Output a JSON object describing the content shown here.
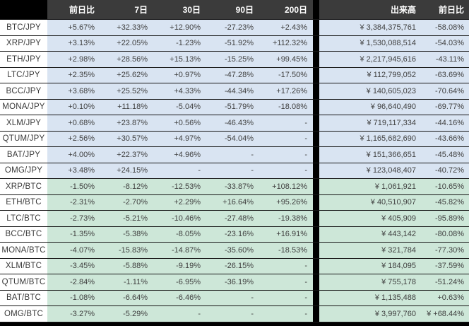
{
  "table": {
    "headers": [
      "前日比",
      "7日",
      "30日",
      "90日",
      "200日",
      "出来高",
      "前日比"
    ],
    "sections": [
      {
        "name": "jpy-pairs",
        "rows": [
          {
            "pair": "BTC/JPY",
            "changes": [
              "+5.67%",
              "+32.33%",
              "+12.90%",
              "-27.23%",
              "+2.43%"
            ],
            "volume": "¥ 3,384,375,761",
            "volume_change": "-58.08%"
          },
          {
            "pair": "XRP/JPY",
            "changes": [
              "+3.13%",
              "+22.05%",
              "-1.23%",
              "-51.92%",
              "+112.32%"
            ],
            "volume": "¥ 1,530,088,514",
            "volume_change": "-54.03%"
          },
          {
            "pair": "ETH/JPY",
            "changes": [
              "+2.98%",
              "+28.56%",
              "+15.13%",
              "-15.25%",
              "+99.45%"
            ],
            "volume": "¥ 2,217,945,616",
            "volume_change": "-43.11%"
          },
          {
            "pair": "LTC/JPY",
            "changes": [
              "+2.35%",
              "+25.62%",
              "+0.97%",
              "-47.28%",
              "-17.50%"
            ],
            "volume": "¥ 112,799,052",
            "volume_change": "-63.69%"
          },
          {
            "pair": "BCC/JPY",
            "changes": [
              "+3.68%",
              "+25.52%",
              "+4.33%",
              "-44.34%",
              "+17.26%"
            ],
            "volume": "¥ 140,605,023",
            "volume_change": "-70.64%"
          },
          {
            "pair": "MONA/JPY",
            "changes": [
              "+0.10%",
              "+11.18%",
              "-5.04%",
              "-51.79%",
              "-18.08%"
            ],
            "volume": "¥ 96,640,490",
            "volume_change": "-69.77%"
          },
          {
            "pair": "XLM/JPY",
            "changes": [
              "+0.68%",
              "+23.87%",
              "+0.56%",
              "-46.43%",
              "-"
            ],
            "volume": "¥ 719,117,334",
            "volume_change": "-44.16%"
          },
          {
            "pair": "QTUM/JPY",
            "changes": [
              "+2.56%",
              "+30.57%",
              "+4.97%",
              "-54.04%",
              "-"
            ],
            "volume": "¥ 1,165,682,690",
            "volume_change": "-43.66%"
          },
          {
            "pair": "BAT/JPY",
            "changes": [
              "+4.00%",
              "+22.37%",
              "+4.96%",
              "-",
              "-"
            ],
            "volume": "¥ 151,366,651",
            "volume_change": "-45.48%"
          },
          {
            "pair": "OMG/JPY",
            "changes": [
              "+3.48%",
              "+24.15%",
              "-",
              "-",
              "-"
            ],
            "volume": "¥ 123,048,407",
            "volume_change": "-40.72%"
          }
        ]
      },
      {
        "name": "btc-pairs",
        "rows": [
          {
            "pair": "XRP/BTC",
            "changes": [
              "-1.50%",
              "-8.12%",
              "-12.53%",
              "-33.87%",
              "+108.12%"
            ],
            "volume": "¥ 1,061,921",
            "volume_change": "-10.65%"
          },
          {
            "pair": "ETH/BTC",
            "changes": [
              "-2.31%",
              "-2.70%",
              "+2.29%",
              "+16.64%",
              "+95.26%"
            ],
            "volume": "¥ 40,510,907",
            "volume_change": "-45.82%"
          },
          {
            "pair": "LTC/BTC",
            "changes": [
              "-2.73%",
              "-5.21%",
              "-10.46%",
              "-27.48%",
              "-19.38%"
            ],
            "volume": "¥ 405,909",
            "volume_change": "-95.89%"
          },
          {
            "pair": "BCC/BTC",
            "changes": [
              "-1.35%",
              "-5.38%",
              "-8.05%",
              "-23.16%",
              "+16.91%"
            ],
            "volume": "¥ 443,142",
            "volume_change": "-80.08%"
          },
          {
            "pair": "MONA/BTC",
            "changes": [
              "-4.07%",
              "-15.83%",
              "-14.87%",
              "-35.60%",
              "-18.53%"
            ],
            "volume": "¥ 321,784",
            "volume_change": "-77.30%"
          },
          {
            "pair": "XLM/BTC",
            "changes": [
              "-3.45%",
              "-5.88%",
              "-9.19%",
              "-26.15%",
              "-"
            ],
            "volume": "¥ 184,095",
            "volume_change": "-37.59%"
          },
          {
            "pair": "QTUM/BTC",
            "changes": [
              "-2.84%",
              "-1.11%",
              "-6.95%",
              "-36.19%",
              "-"
            ],
            "volume": "¥ 755,178",
            "volume_change": "-51.24%"
          },
          {
            "pair": "BAT/BTC",
            "changes": [
              "-1.08%",
              "-6.64%",
              "-6.46%",
              "-",
              "-"
            ],
            "volume": "¥ 1,135,488",
            "volume_change": "+0.63%"
          },
          {
            "pair": "OMG/BTC",
            "changes": [
              "-3.27%",
              "-5.29%",
              "-",
              "-",
              "-"
            ],
            "volume": "¥ 3,997,760",
            "volume_change": "¥ +68.44%"
          }
        ]
      }
    ]
  },
  "colors": {
    "header_bg": "#3b3b3b",
    "header_corner_bg": "#000000",
    "divider": "#000000",
    "jpy_row_bg": "#d9e4f2",
    "btc_row_bg": "#cde7d8",
    "text": "#3f3f3f"
  }
}
